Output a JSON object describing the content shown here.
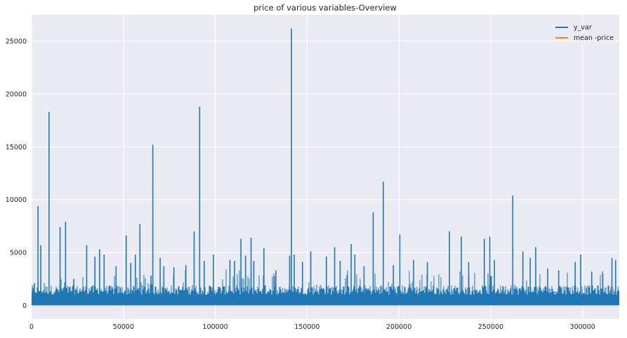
{
  "chart_data": {
    "type": "line",
    "title": "price of various variables-Overview",
    "xlabel": "",
    "ylabel": "",
    "xlim": [
      0,
      320000
    ],
    "ylim": [
      -1300,
      27500
    ],
    "x_ticks": [
      0,
      50000,
      100000,
      150000,
      200000,
      250000,
      300000
    ],
    "y_ticks": [
      0,
      5000,
      10000,
      15000,
      20000,
      25000
    ],
    "grid": true,
    "legend_position": "top-right",
    "colors": {
      "y_var": "#1f77b4",
      "mean": "#ff7f0e",
      "background": "#eaeaf2",
      "grid": "#ffffff"
    },
    "series": [
      {
        "name": "y_var",
        "baseline": 1000,
        "peaks": [
          {
            "x": 1500,
            "y": 2100
          },
          {
            "x": 3500,
            "y": 9400
          },
          {
            "x": 5000,
            "y": 5700
          },
          {
            "x": 9500,
            "y": 18300
          },
          {
            "x": 15500,
            "y": 7400
          },
          {
            "x": 18500,
            "y": 7900
          },
          {
            "x": 23000,
            "y": 2500
          },
          {
            "x": 30000,
            "y": 5700
          },
          {
            "x": 34500,
            "y": 4600
          },
          {
            "x": 37000,
            "y": 5300
          },
          {
            "x": 39500,
            "y": 4800
          },
          {
            "x": 46000,
            "y": 3700
          },
          {
            "x": 51500,
            "y": 6600
          },
          {
            "x": 54000,
            "y": 4000
          },
          {
            "x": 56500,
            "y": 4800
          },
          {
            "x": 59000,
            "y": 7700
          },
          {
            "x": 65000,
            "y": 2800
          },
          {
            "x": 66000,
            "y": 15200
          },
          {
            "x": 70000,
            "y": 4500
          },
          {
            "x": 72000,
            "y": 3700
          },
          {
            "x": 77500,
            "y": 3600
          },
          {
            "x": 84000,
            "y": 3800
          },
          {
            "x": 88500,
            "y": 7000
          },
          {
            "x": 91500,
            "y": 18800
          },
          {
            "x": 94000,
            "y": 4200
          },
          {
            "x": 99000,
            "y": 4800
          },
          {
            "x": 108000,
            "y": 4300
          },
          {
            "x": 110500,
            "y": 4200
          },
          {
            "x": 114000,
            "y": 6300
          },
          {
            "x": 116500,
            "y": 4700
          },
          {
            "x": 119500,
            "y": 6400
          },
          {
            "x": 121000,
            "y": 4200
          },
          {
            "x": 126500,
            "y": 5400
          },
          {
            "x": 133000,
            "y": 3300
          },
          {
            "x": 140500,
            "y": 4700
          },
          {
            "x": 141500,
            "y": 26200
          },
          {
            "x": 143000,
            "y": 4800
          },
          {
            "x": 147500,
            "y": 4100
          },
          {
            "x": 152000,
            "y": 5100
          },
          {
            "x": 160500,
            "y": 4600
          },
          {
            "x": 165000,
            "y": 5500
          },
          {
            "x": 168000,
            "y": 4200
          },
          {
            "x": 174000,
            "y": 5800
          },
          {
            "x": 176000,
            "y": 4800
          },
          {
            "x": 181000,
            "y": 3700
          },
          {
            "x": 186000,
            "y": 8800
          },
          {
            "x": 191500,
            "y": 11700
          },
          {
            "x": 197000,
            "y": 3800
          },
          {
            "x": 200500,
            "y": 6700
          },
          {
            "x": 208000,
            "y": 4300
          },
          {
            "x": 215500,
            "y": 4100
          },
          {
            "x": 227500,
            "y": 7000
          },
          {
            "x": 234000,
            "y": 6500
          },
          {
            "x": 238000,
            "y": 4100
          },
          {
            "x": 246500,
            "y": 6300
          },
          {
            "x": 249500,
            "y": 6500
          },
          {
            "x": 252000,
            "y": 4300
          },
          {
            "x": 262000,
            "y": 10400
          },
          {
            "x": 267500,
            "y": 5100
          },
          {
            "x": 271500,
            "y": 4500
          },
          {
            "x": 274500,
            "y": 5500
          },
          {
            "x": 281000,
            "y": 3500
          },
          {
            "x": 287000,
            "y": 3300
          },
          {
            "x": 296000,
            "y": 4100
          },
          {
            "x": 299000,
            "y": 4800
          },
          {
            "x": 305000,
            "y": 3200
          },
          {
            "x": 311000,
            "y": 3000
          },
          {
            "x": 316000,
            "y": 4500
          },
          {
            "x": 318000,
            "y": 4300
          }
        ]
      },
      {
        "name": "mean -price",
        "value": 0
      }
    ]
  }
}
